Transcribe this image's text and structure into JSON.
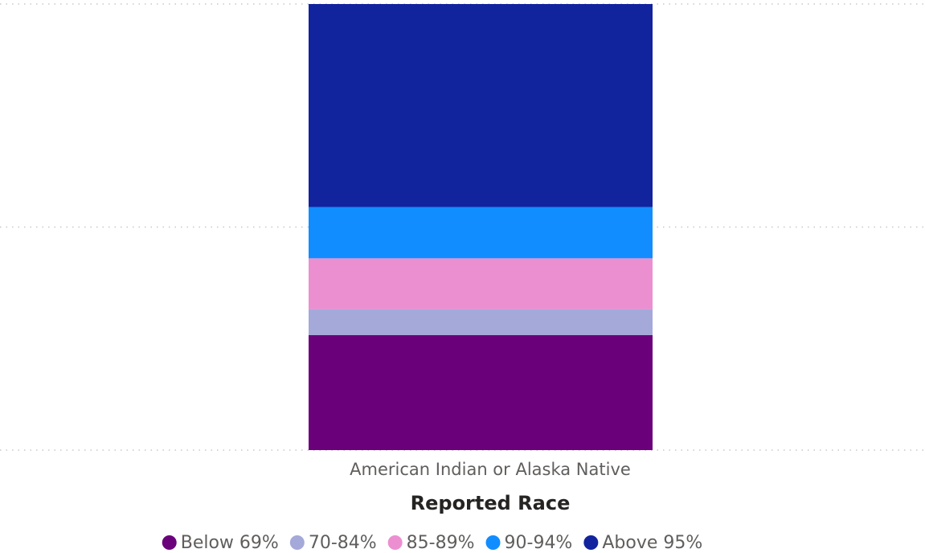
{
  "chart_data": {
    "type": "stacked_bar",
    "categories": [
      "American Indian or Alaska Native"
    ],
    "x_label": "Reported Race",
    "series": [
      {
        "name": "Below 69%",
        "color": "#6B007B",
        "values": [
          25.8
        ]
      },
      {
        "name": "70-84%",
        "color": "#A4A9DA",
        "values": [
          5.8
        ]
      },
      {
        "name": "85-89%",
        "color": "#EB8FD0",
        "values": [
          11.4
        ]
      },
      {
        "name": "90-94%",
        "color": "#118DFF",
        "values": [
          11.5
        ]
      },
      {
        "name": "Above 95%",
        "color": "#12239E",
        "values": [
          45.5
        ]
      }
    ],
    "ylim": [
      0,
      100
    ],
    "yticks": [
      0,
      50,
      100
    ],
    "grid": true,
    "legend": "bottom"
  }
}
